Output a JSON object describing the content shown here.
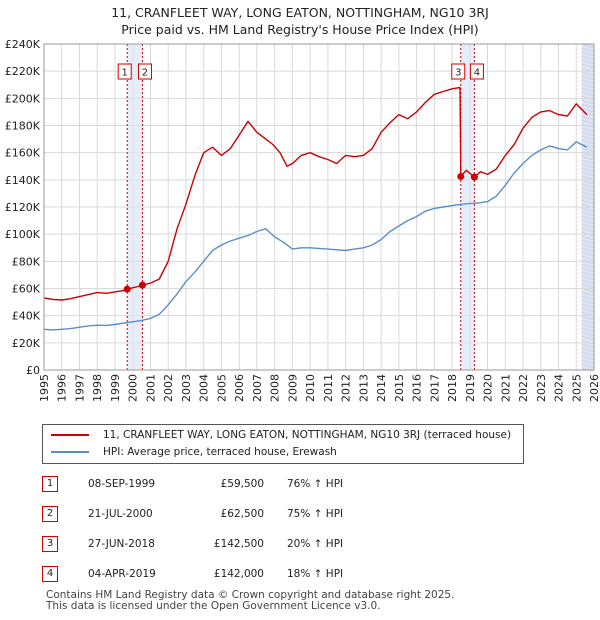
{
  "title_line1": "11, CRANFLEET WAY, LONG EATON, NOTTINGHAM, NG10 3RJ",
  "title_line2": "Price paid vs. HM Land Registry's House Price Index (HPI)",
  "colors": {
    "property": "#cc0000",
    "hpi": "#5b8ec9",
    "marker": "#cc0000",
    "shade": "#dde4f2",
    "grid": "#d9d9d9"
  },
  "chart_data": {
    "type": "line",
    "title": "Price paid vs. HM Land Registry's House Price Index (HPI)",
    "xlabel": "",
    "ylabel": "",
    "xlim": [
      1995,
      2026
    ],
    "ylim": [
      0,
      240000
    ],
    "x_ticks": [
      "1995",
      "1996",
      "1997",
      "1998",
      "1999",
      "2000",
      "2001",
      "2002",
      "2003",
      "2004",
      "2005",
      "2006",
      "2007",
      "2008",
      "2009",
      "2010",
      "2011",
      "2012",
      "2013",
      "2014",
      "2015",
      "2016",
      "2017",
      "2018",
      "2019",
      "2020",
      "2021",
      "2022",
      "2023",
      "2024",
      "2025",
      "2026"
    ],
    "y_ticks": [
      0,
      20000,
      40000,
      60000,
      80000,
      100000,
      120000,
      140000,
      160000,
      180000,
      200000,
      220000,
      240000
    ],
    "y_tick_labels": [
      "£0",
      "£20K",
      "£40K",
      "£60K",
      "£80K",
      "£100K",
      "£120K",
      "£140K",
      "£160K",
      "£180K",
      "£200K",
      "£220K",
      "£240K"
    ],
    "grid": true,
    "future_shade_from": 2025.3,
    "series": [
      {
        "name": "11, CRANFLEET WAY, LONG EATON, NOTTINGHAM, NG10 3RJ (terraced house)",
        "color": "#cc0000",
        "x": [
          1995.0,
          1995.5,
          1996.0,
          1996.5,
          1997.0,
          1997.5,
          1998.0,
          1998.5,
          1999.0,
          1999.5,
          1999.69,
          2000.0,
          2000.3,
          2000.55,
          2001.0,
          2001.5,
          2002.0,
          2002.5,
          2003.0,
          2003.5,
          2004.0,
          2004.5,
          2005.0,
          2005.5,
          2006.0,
          2006.5,
          2007.0,
          2007.5,
          2007.9,
          2008.3,
          2008.7,
          2009.0,
          2009.5,
          2010.0,
          2010.5,
          2011.0,
          2011.5,
          2012.0,
          2012.5,
          2013.0,
          2013.5,
          2014.0,
          2014.5,
          2015.0,
          2015.5,
          2016.0,
          2016.5,
          2017.0,
          2017.5,
          2018.0,
          2018.45,
          2018.49,
          2018.8,
          2019.26,
          2019.6,
          2020.0,
          2020.5,
          2021.0,
          2021.5,
          2022.0,
          2022.5,
          2023.0,
          2023.5,
          2024.0,
          2024.5,
          2025.0,
          2025.3,
          2025.6
        ],
        "values": [
          53000,
          52000,
          51500,
          52500,
          54000,
          55500,
          57000,
          56500,
          57500,
          58500,
          59500,
          60500,
          61500,
          62500,
          64000,
          67000,
          80000,
          104000,
          122000,
          143000,
          160000,
          164000,
          158000,
          163000,
          173000,
          183000,
          175000,
          170000,
          166000,
          160000,
          150000,
          152000,
          158000,
          160000,
          157000,
          155000,
          152000,
          158000,
          157000,
          158000,
          163000,
          175000,
          182000,
          188000,
          185000,
          190000,
          197000,
          203000,
          205000,
          207000,
          208000,
          142500,
          147000,
          142000,
          146000,
          144000,
          148000,
          158000,
          166000,
          178000,
          186000,
          190000,
          191000,
          188000,
          187000,
          196000,
          192000,
          188000
        ]
      },
      {
        "name": "HPI: Average price, terraced house, Erewash",
        "color": "#5b8ec9",
        "x": [
          1995.0,
          1995.5,
          1996.0,
          1996.5,
          1997.0,
          1997.5,
          1998.0,
          1998.5,
          1999.0,
          1999.5,
          2000.0,
          2000.5,
          2001.0,
          2001.5,
          2002.0,
          2002.5,
          2003.0,
          2003.5,
          2004.0,
          2004.5,
          2005.0,
          2005.5,
          2006.0,
          2006.5,
          2007.0,
          2007.5,
          2008.0,
          2008.5,
          2009.0,
          2009.5,
          2010.0,
          2010.5,
          2011.0,
          2011.5,
          2012.0,
          2012.5,
          2013.0,
          2013.5,
          2014.0,
          2014.5,
          2015.0,
          2015.5,
          2016.0,
          2016.5,
          2017.0,
          2017.5,
          2018.0,
          2018.5,
          2019.0,
          2019.5,
          2020.0,
          2020.5,
          2021.0,
          2021.5,
          2022.0,
          2022.5,
          2023.0,
          2023.5,
          2024.0,
          2024.5,
          2025.0,
          2025.3,
          2025.6
        ],
        "values": [
          30000,
          29500,
          30000,
          30500,
          31500,
          32500,
          33000,
          32800,
          33500,
          34500,
          35500,
          36500,
          38000,
          41000,
          48000,
          56000,
          65000,
          72000,
          80000,
          88000,
          92000,
          95000,
          97000,
          99000,
          102000,
          104000,
          98000,
          94000,
          89000,
          90000,
          90000,
          89500,
          89000,
          88500,
          88000,
          89000,
          90000,
          92000,
          96000,
          102000,
          106000,
          110000,
          113000,
          117000,
          119000,
          120000,
          121000,
          122000,
          122500,
          123000,
          124000,
          128000,
          136000,
          145000,
          152000,
          158000,
          162000,
          165000,
          163000,
          162000,
          168000,
          166000,
          164000
        ]
      }
    ],
    "transactions": [
      {
        "label": "1",
        "x": 1999.69,
        "date": "08-SEP-1999",
        "price": 59500,
        "price_text": "£59,500",
        "hpi_text": "76% ↑ HPI"
      },
      {
        "label": "2",
        "x": 2000.55,
        "date": "21-JUL-2000",
        "price": 62500,
        "price_text": "£62,500",
        "hpi_text": "75% ↑ HPI"
      },
      {
        "label": "3",
        "x": 2018.49,
        "date": "27-JUN-2018",
        "price": 142500,
        "price_text": "£142,500",
        "hpi_text": "20% ↑ HPI"
      },
      {
        "label": "4",
        "x": 2019.26,
        "date": "04-APR-2019",
        "price": 142000,
        "price_text": "£142,000",
        "hpi_text": "18% ↑ HPI"
      }
    ]
  },
  "legend": {
    "property_label": "11, CRANFLEET WAY, LONG EATON, NOTTINGHAM, NG10 3RJ (terraced house)",
    "hpi_label": "HPI: Average price, terraced house, Erewash"
  },
  "footer_line1": "Contains HM Land Registry data © Crown copyright and database right 2025.",
  "footer_line2": "This data is licensed under the Open Government Licence v3.0."
}
